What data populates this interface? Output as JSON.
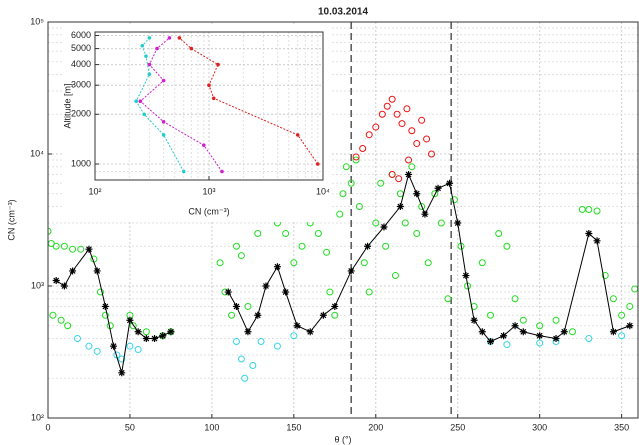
{
  "chart_data": [
    {
      "type": "scatter",
      "title": "10.03.2014",
      "xlabel": "θ (°)",
      "ylabel": "CN (cm⁻³)",
      "xlim": [
        0,
        360
      ],
      "xticks": [
        0,
        50,
        100,
        150,
        200,
        250,
        300,
        350
      ],
      "ylim": [
        100,
        100000
      ],
      "log_y": true,
      "grid": true,
      "yticks": [
        {
          "value": 100,
          "label": "10²"
        },
        {
          "value": 1000,
          "label": "10³"
        },
        {
          "value": 10000,
          "label": "10⁴"
        },
        {
          "value": 100000,
          "label": "10⁵"
        }
      ],
      "vlines": [
        185,
        246
      ],
      "series": [
        {
          "color": "#33d6e6",
          "marker": "circle",
          "x": [
            18,
            25,
            30,
            42,
            45,
            50,
            55,
            115,
            118,
            120,
            125,
            130,
            140,
            150,
            270,
            280,
            300,
            310,
            330,
            350
          ],
          "values": [
            400,
            350,
            320,
            300,
            280,
            350,
            330,
            380,
            280,
            200,
            250,
            380,
            350,
            420,
            380,
            360,
            370,
            380,
            400,
            420
          ]
        },
        {
          "color": "#22dd22",
          "marker": "circle",
          "x": [
            0,
            2,
            5,
            10,
            15,
            20,
            3,
            8,
            12,
            28,
            32,
            35,
            38,
            50,
            52,
            60,
            70,
            75,
            105,
            108,
            112,
            115,
            118,
            122,
            128,
            132,
            135,
            140,
            145,
            150,
            155,
            160,
            165,
            170,
            172,
            175,
            178,
            180,
            182,
            185,
            188,
            190,
            193,
            196,
            200,
            203,
            206,
            210,
            212,
            215,
            218,
            222,
            225,
            228,
            232,
            236,
            240,
            244,
            248,
            252,
            256,
            260,
            265,
            270,
            275,
            280,
            285,
            290,
            300,
            310,
            320,
            326,
            330,
            335,
            340,
            345,
            350,
            355,
            358
          ],
          "values": [
            2600,
            2100,
            2000,
            2000,
            1900,
            1900,
            600,
            550,
            500,
            1600,
            900,
            600,
            500,
            600,
            500,
            450,
            420,
            450,
            1500,
            900,
            600,
            2000,
            1700,
            700,
            2500,
            4000,
            3500,
            3000,
            2500,
            1500,
            2000,
            3000,
            2500,
            1800,
            900,
            600,
            3500,
            5000,
            8000,
            6000,
            9000,
            4000,
            1500,
            900,
            3000,
            6000,
            2000,
            7000,
            1200,
            5000,
            3000,
            8000,
            2500,
            4000,
            1500,
            5000,
            3000,
            800,
            4500,
            2000,
            1000,
            700,
            1500,
            600,
            2500,
            2000,
            800,
            550,
            500,
            550,
            450,
            3800,
            3800,
            3700,
            1200,
            800,
            600,
            700,
            950
          ]
        },
        {
          "color": "#ee1111",
          "marker": "circle",
          "x": [
            188,
            192,
            196,
            200,
            204,
            207,
            210,
            213,
            216,
            219,
            222,
            225,
            228,
            231,
            234,
            210,
            214,
            220
          ],
          "values": [
            9500,
            11000,
            14000,
            16000,
            20000,
            23000,
            26000,
            20000,
            17000,
            22000,
            15000,
            12000,
            18000,
            13000,
            10000,
            7000,
            6500,
            9000
          ]
        },
        {
          "color": "#000000",
          "marker": "asterisk",
          "line": true,
          "x": [
            5,
            10,
            15,
            25,
            30,
            35,
            40,
            45,
            50,
            55,
            60,
            65,
            70,
            75,
            90,
            110,
            115,
            122,
            128,
            133,
            140,
            145,
            152,
            160,
            168,
            175,
            185,
            195,
            205,
            215,
            220,
            225,
            230,
            238,
            245,
            250,
            255,
            260,
            265,
            270,
            278,
            285,
            290,
            300,
            310,
            315,
            330,
            335,
            345,
            355
          ],
          "values": [
            1100,
            1000,
            1300,
            1900,
            1300,
            700,
            350,
            220,
            550,
            450,
            400,
            400,
            420,
            450,
            null,
            900,
            700,
            450,
            600,
            1000,
            1400,
            900,
            500,
            450,
            600,
            700,
            1300,
            2000,
            2800,
            4000,
            7000,
            5000,
            3500,
            5500,
            6000,
            3000,
            1200,
            550,
            450,
            380,
            420,
            500,
            450,
            420,
            400,
            450,
            2500,
            2200,
            450,
            500
          ]
        }
      ]
    },
    {
      "type": "line",
      "xlabel": "CN (cm⁻³)",
      "ylabel": "Altitude [m]",
      "xlim": [
        100,
        10000
      ],
      "log_x": true,
      "xticks": [
        {
          "value": 100,
          "label": "10²"
        },
        {
          "value": 1000,
          "label": "10³"
        },
        {
          "value": 10000,
          "label": "10⁴"
        }
      ],
      "ylim": [
        800,
        6300
      ],
      "log_y": true,
      "yticks": [
        1000,
        2000,
        3000,
        4000,
        5000,
        6000
      ],
      "grid": true,
      "series": [
        {
          "color": "#dd2222",
          "x": [
            9000,
            6000,
            1100,
            1000,
            1200,
            700,
            550
          ],
          "values": [
            1000,
            1500,
            2500,
            3000,
            4000,
            5000,
            5800
          ]
        },
        {
          "color": "#cc22cc",
          "x": [
            1300,
            900,
            400,
            250,
            400,
            300,
            350,
            450
          ],
          "values": [
            900,
            1300,
            1800,
            2400,
            3200,
            4000,
            5000,
            5800
          ]
        },
        {
          "color": "#22cccc",
          "x": [
            600,
            400,
            270,
            230,
            300,
            280,
            260,
            300
          ],
          "values": [
            900,
            1500,
            2000,
            2400,
            3500,
            4500,
            5200,
            5800
          ]
        }
      ]
    }
  ]
}
